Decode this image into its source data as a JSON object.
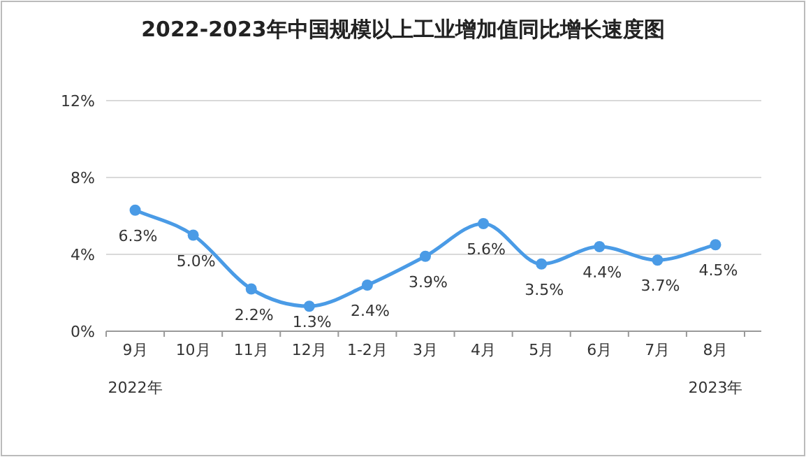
{
  "chart_data": {
    "type": "line",
    "title": "2022-2023年中国规模以上工业增加值同比增长速度图",
    "categories": [
      "9月",
      "10月",
      "11月",
      "12月",
      "1-2月",
      "3月",
      "4月",
      "5月",
      "6月",
      "7月",
      "8月"
    ],
    "series": [
      {
        "color": "#4a9be6",
        "values": [
          6.3,
          5.0,
          2.2,
          1.3,
          2.4,
          3.9,
          5.6,
          3.5,
          4.4,
          3.7,
          4.5
        ],
        "value_labels": [
          "6.3%",
          "5.0%",
          "2.2%",
          "1.3%",
          "2.4%",
          "3.9%",
          "5.6%",
          "3.5%",
          "4.4%",
          "3.7%",
          "4.5%"
        ]
      }
    ],
    "ylim": [
      0,
      12
    ],
    "yticks": [
      {
        "value": 0,
        "label": "0%"
      },
      {
        "value": 4,
        "label": "4%"
      },
      {
        "value": 8,
        "label": "8%"
      },
      {
        "value": 12,
        "label": "12%"
      }
    ],
    "grid": "y",
    "marker": "circle",
    "line_style": "solid",
    "annotations": [
      "2022年",
      "2023年"
    ]
  }
}
